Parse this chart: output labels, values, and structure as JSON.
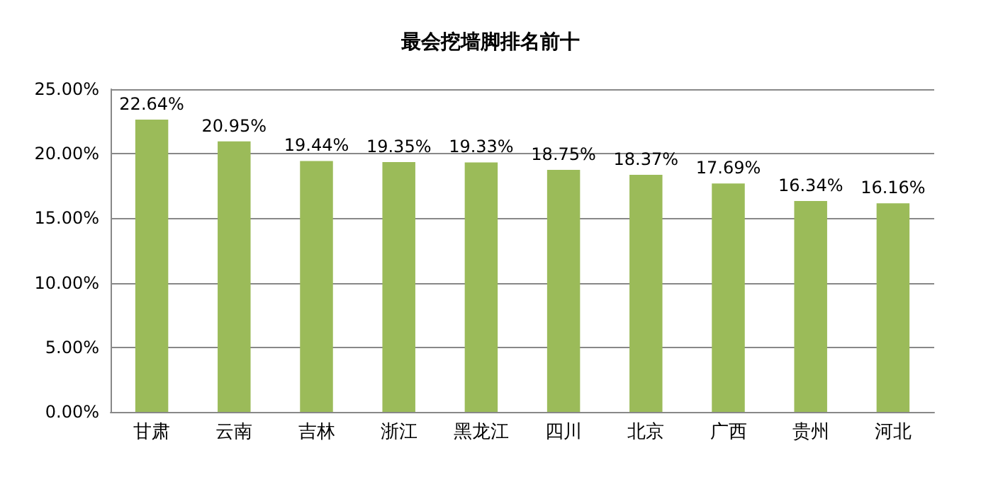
{
  "chart_data": {
    "type": "bar",
    "title": "最会挖墙脚排名前十",
    "categories": [
      "甘肃",
      "云南",
      "吉林",
      "浙江",
      "黑龙江",
      "四川",
      "北京",
      "广西",
      "贵州",
      "河北"
    ],
    "values": [
      22.64,
      20.95,
      19.44,
      19.35,
      19.33,
      18.75,
      18.37,
      17.69,
      16.34,
      16.16
    ],
    "value_labels": [
      "22.64%",
      "20.95%",
      "19.44%",
      "19.35%",
      "19.33%",
      "18.75%",
      "18.37%",
      "17.69%",
      "16.34%",
      "16.16%"
    ],
    "color": "#9bbb59",
    "ylim": [
      0,
      25
    ],
    "yticks": [
      {
        "value": 0,
        "label": "0.00%"
      },
      {
        "value": 5,
        "label": "5.00%"
      },
      {
        "value": 10,
        "label": "10.00%"
      },
      {
        "value": 15,
        "label": "15.00%"
      },
      {
        "value": 20,
        "label": "20.00%"
      },
      {
        "value": 25,
        "label": "25.00%"
      }
    ],
    "grid": "y"
  }
}
